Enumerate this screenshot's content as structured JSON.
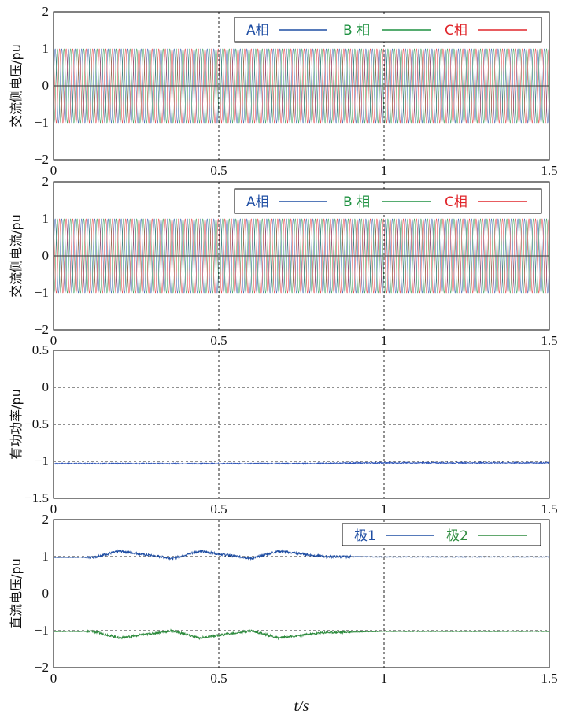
{
  "chart_data": [
    {
      "type": "line",
      "ylabel": "交流侧电压/pu",
      "xlim": [
        0,
        1.5
      ],
      "ylim": [
        -2,
        2
      ],
      "xticks": [
        "0",
        "0.5",
        "1",
        "1.5"
      ],
      "yticks": [
        "2",
        "1",
        "0",
        "−1",
        "−2"
      ],
      "grid_x": [
        0.5,
        1
      ],
      "grid_y": [],
      "series": [
        {
          "name": "A相",
          "color": "#1f4ea3",
          "amplitude": 1,
          "frequency_hz": 50,
          "phase_deg": 0
        },
        {
          "name": "B 相",
          "color": "#1e9140",
          "amplitude": 1,
          "frequency_hz": 50,
          "phase_deg": -120
        },
        {
          "name": "C相",
          "color": "#e0262b",
          "amplitude": 1,
          "frequency_hz": 50,
          "phase_deg": 120
        }
      ]
    },
    {
      "type": "line",
      "ylabel": "交流侧电流/pu",
      "xlim": [
        0,
        1.5
      ],
      "ylim": [
        -2,
        2
      ],
      "xticks": [
        "0",
        "0.5",
        "1",
        "1.5"
      ],
      "yticks": [
        "2",
        "1",
        "0",
        "−1",
        "−2"
      ],
      "grid_x": [
        0.5,
        1
      ],
      "grid_y": [],
      "series": [
        {
          "name": "A相",
          "color": "#1f4ea3",
          "amplitude": 1,
          "frequency_hz": 50,
          "phase_deg": 0
        },
        {
          "name": "B 相",
          "color": "#1e9140",
          "amplitude": 1,
          "frequency_hz": 50,
          "phase_deg": -120
        },
        {
          "name": "C相",
          "color": "#e0262b",
          "amplitude": 1,
          "frequency_hz": 50,
          "phase_deg": 120
        }
      ]
    },
    {
      "type": "line",
      "ylabel": "有功功率/pu",
      "xlim": [
        0,
        1.5
      ],
      "ylim": [
        -1.5,
        0.5
      ],
      "xticks": [
        "0",
        "0.5",
        "1",
        "1.5"
      ],
      "yticks": [
        "0.5",
        "0",
        "−0.5",
        "−1",
        "−1.5"
      ],
      "grid_x": [
        0.5,
        1
      ],
      "grid_y": [
        0,
        -0.5,
        -1
      ],
      "series": [
        {
          "name": "有功功率",
          "color": "#2f55b8",
          "x": [
            0,
            0.25,
            0.5,
            0.75,
            1.0,
            1.25,
            1.5
          ],
          "y": [
            -1.03,
            -1.03,
            -1.03,
            -1.03,
            -1.02,
            -1.02,
            -1.02
          ]
        }
      ]
    },
    {
      "type": "line",
      "ylabel": "直流电压/pu",
      "xlabel": "t/s",
      "xlim": [
        0,
        1.5
      ],
      "ylim": [
        -2,
        2
      ],
      "xticks": [
        "0",
        "0.5",
        "1",
        "1.5"
      ],
      "yticks": [
        "2",
        "1",
        "0",
        "−1",
        "−2"
      ],
      "grid_x": [
        0.5,
        1
      ],
      "grid_y": [
        1,
        -1
      ],
      "series": [
        {
          "name": "极1",
          "color": "#1f4ea3",
          "x": [
            0,
            0.12,
            0.2,
            0.36,
            0.44,
            0.6,
            0.68,
            0.82,
            1.0,
            1.5
          ],
          "y": [
            0.98,
            0.98,
            1.15,
            0.95,
            1.15,
            0.95,
            1.15,
            1.0,
            0.99,
            0.99
          ]
        },
        {
          "name": "极2",
          "color": "#2e8b3e",
          "x": [
            0,
            0.12,
            0.2,
            0.36,
            0.44,
            0.6,
            0.68,
            0.82,
            1.0,
            1.5
          ],
          "y": [
            -1.02,
            -1.02,
            -1.2,
            -1.0,
            -1.2,
            -1.0,
            -1.2,
            -1.05,
            -1.02,
            -1.02
          ]
        }
      ]
    }
  ]
}
